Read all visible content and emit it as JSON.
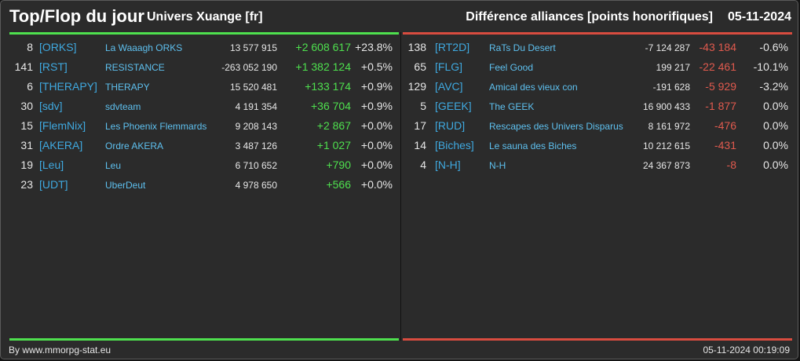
{
  "header": {
    "title": "Top/Flop du jour",
    "universe": "Univers Xuange [fr]",
    "subtitle": "Différence alliances [points honorifiques]",
    "date": "05-11-2024"
  },
  "colors": {
    "positive": "#4ee04e",
    "negative": "#e05a4e",
    "tag": "#3fa9e0",
    "background": "#2b2b2b"
  },
  "top": [
    {
      "rank": "8",
      "tag": "[ORKS]",
      "name": "La Waaagh ORKS",
      "total": "13 577 915",
      "diff": "+2 608 617",
      "pct": "+23.8%"
    },
    {
      "rank": "141",
      "tag": "[RST]",
      "name": "RESISTANCE",
      "total": "-263 052 190",
      "diff": "+1 382 124",
      "pct": "+0.5%"
    },
    {
      "rank": "6",
      "tag": "[THERAPY]",
      "name": "THERAPY",
      "total": "15 520 481",
      "diff": "+133 174",
      "pct": "+0.9%"
    },
    {
      "rank": "30",
      "tag": "[sdv]",
      "name": "sdvteam",
      "total": "4 191 354",
      "diff": "+36 704",
      "pct": "+0.9%"
    },
    {
      "rank": "15",
      "tag": "[FlemNix]",
      "name": "Les Phoenix Flemmards",
      "total": "9 208 143",
      "diff": "+2 867",
      "pct": "+0.0%"
    },
    {
      "rank": "31",
      "tag": "[AKERA]",
      "name": "Ordre AKERA",
      "total": "3 487 126",
      "diff": "+1 027",
      "pct": "+0.0%"
    },
    {
      "rank": "19",
      "tag": "[Leu]",
      "name": "Leu",
      "total": "6 710 652",
      "diff": "+790",
      "pct": "+0.0%"
    },
    {
      "rank": "23",
      "tag": "[UDT]",
      "name": "UberDeut",
      "total": "4 978 650",
      "diff": "+566",
      "pct": "+0.0%"
    }
  ],
  "flop": [
    {
      "rank": "138",
      "tag": "[RT2D]",
      "name": "RaTs Du Desert",
      "total": "-7 124 287",
      "diff": "-43 184",
      "pct": "-0.6%"
    },
    {
      "rank": "65",
      "tag": "[FLG]",
      "name": "Feel Good",
      "total": "199 217",
      "diff": "-22 461",
      "pct": "-10.1%"
    },
    {
      "rank": "129",
      "tag": "[AVC]",
      "name": "Amical des vieux con",
      "total": "-191 628",
      "diff": "-5 929",
      "pct": "-3.2%"
    },
    {
      "rank": "5",
      "tag": "[GEEK]",
      "name": "The GEEK",
      "total": "16 900 433",
      "diff": "-1 877",
      "pct": "0.0%"
    },
    {
      "rank": "17",
      "tag": "[RUD]",
      "name": "Rescapes des Univers Disparus",
      "total": "8 161 972",
      "diff": "-476",
      "pct": "0.0%"
    },
    {
      "rank": "14",
      "tag": "[Biches]",
      "name": "Le sauna des Biches",
      "total": "10 212 615",
      "diff": "-431",
      "pct": "0.0%"
    },
    {
      "rank": "4",
      "tag": "[N-H]",
      "name": "N-H",
      "total": "24 367 873",
      "diff": "-8",
      "pct": "0.0%"
    }
  ],
  "footer": {
    "credit": "By www.mmorpg-stat.eu",
    "timestamp": "05-11-2024 00:19:09"
  }
}
